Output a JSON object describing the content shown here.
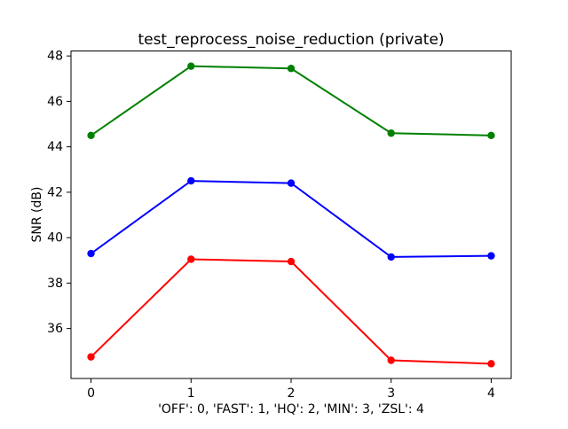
{
  "chart_data": {
    "type": "line",
    "title": "test_reprocess_noise_reduction (private)",
    "xlabel": "'OFF': 0, 'FAST': 1, 'HQ': 2, 'MIN': 3, 'ZSL': 4",
    "ylabel": "SNR (dB)",
    "x": [
      0,
      1,
      2,
      3,
      4
    ],
    "xticks": [
      0,
      1,
      2,
      3,
      4
    ],
    "yticks": [
      36,
      38,
      40,
      42,
      44,
      46,
      48
    ],
    "xlim": [
      -0.2,
      4.2
    ],
    "ylim": [
      33.8,
      48.22
    ],
    "grid": false,
    "legend": "none",
    "marker": "circle",
    "background_color": "#ffffff",
    "axes_color": "#000000",
    "series": [
      {
        "name": "red-line",
        "color": "#ff0000",
        "values": [
          34.75,
          39.05,
          38.95,
          34.6,
          34.45
        ]
      },
      {
        "name": "green-line",
        "color": "#008000",
        "values": [
          44.5,
          47.55,
          47.45,
          44.6,
          44.5
        ]
      },
      {
        "name": "blue-line",
        "color": "#0000ff",
        "values": [
          39.3,
          42.5,
          42.4,
          39.15,
          39.2
        ]
      }
    ]
  }
}
